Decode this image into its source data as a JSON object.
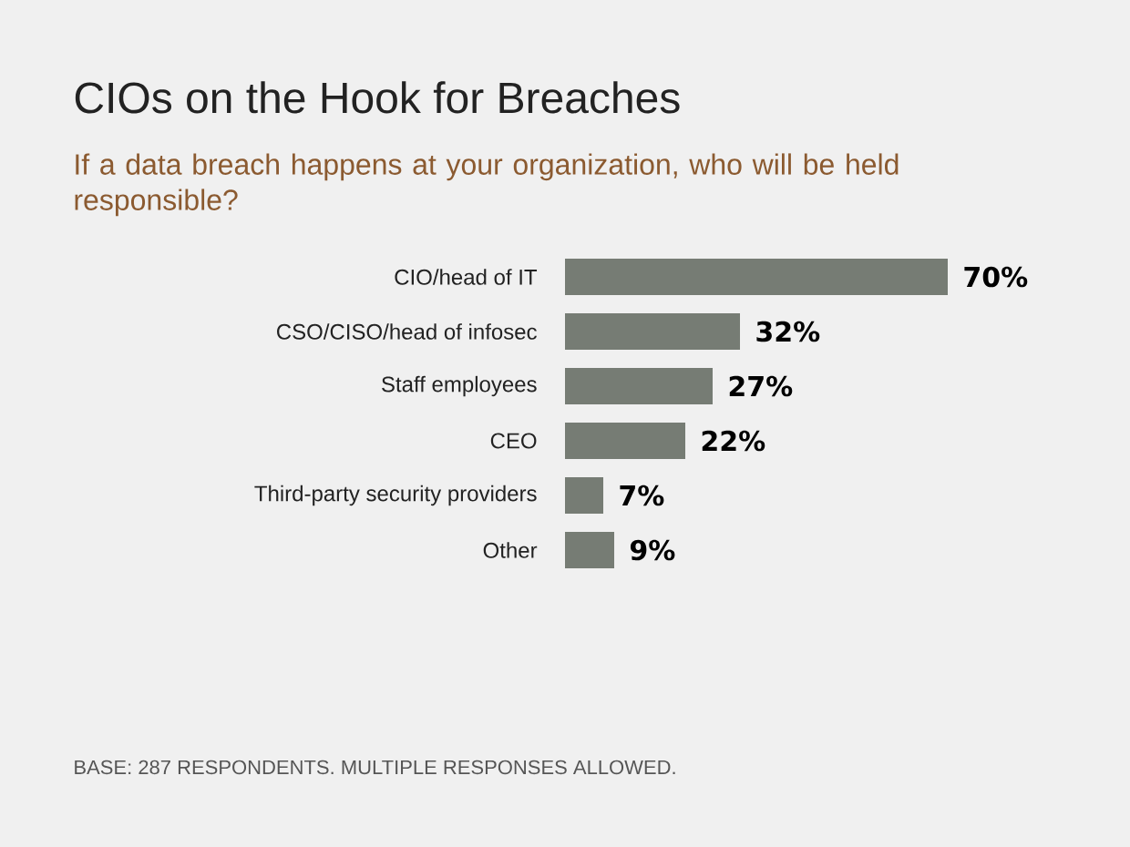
{
  "chart_data": {
    "type": "bar",
    "orientation": "horizontal",
    "title": "CIOs on the Hook for Breaches",
    "subtitle": "If a data breach happens at your organization, who will be held responsible?",
    "categories": [
      "CIO/head of IT",
      "CSO/CISO/head of infosec",
      "Staff employees",
      "CEO",
      "Third-party security providers",
      "Other"
    ],
    "values": [
      70,
      32,
      27,
      22,
      7,
      9
    ],
    "value_labels": [
      "70%",
      "32%",
      "27%",
      "22%",
      "7%",
      "9%"
    ],
    "color": "#767c74",
    "tick_labels": "y",
    "annotations": [
      "BASE: 287 RESPONDENTS. MULTIPLE RESPONSES ALLOWED."
    ]
  }
}
